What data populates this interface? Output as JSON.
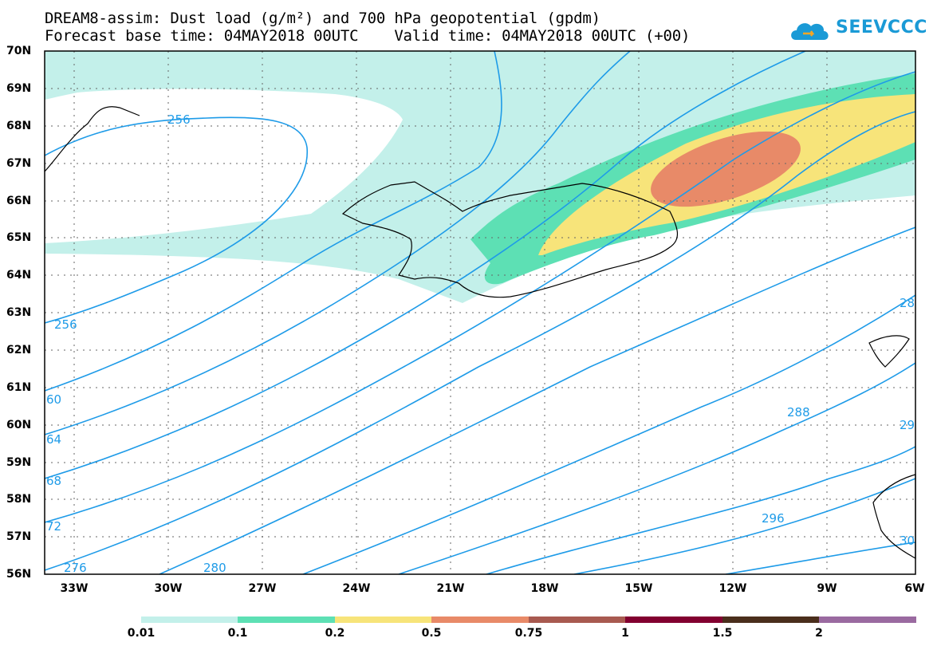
{
  "header": {
    "title_line1": "DREAM8-assim: Dust load (g/m²) and 700 hPa geopotential (gpdm)",
    "title_line2": "Forecast base time: 04MAY2018 00UTC    Valid time: 04MAY2018 00UTC (+00)",
    "logo_text": "SEEVCCC"
  },
  "map": {
    "lat_labels": [
      "70N",
      "69N",
      "68N",
      "67N",
      "66N",
      "65N",
      "64N",
      "63N",
      "62N",
      "61N",
      "60N",
      "59N",
      "58N",
      "57N",
      "56N"
    ],
    "lon_labels": [
      "33W",
      "30W",
      "27W",
      "24W",
      "21W",
      "18W",
      "15W",
      "12W",
      "9W",
      "6W"
    ],
    "contour_labels": [
      "256",
      "256",
      "60",
      "64",
      "68",
      "72",
      "276",
      "280",
      "288",
      "296",
      "28",
      "29",
      "30"
    ],
    "colors": {
      "contour": "#1e9be8",
      "coast": "#000000"
    }
  },
  "colorbar": {
    "labels": [
      "0.01",
      "0.1",
      "0.2",
      "0.5",
      "0.75",
      "1",
      "1.5",
      "2"
    ],
    "colors": [
      "#c3f0ea",
      "#5de0b4",
      "#f7e47a",
      "#e88a68",
      "#a85a50",
      "#820030",
      "#4a2e1c",
      "#9a6aa0"
    ]
  }
}
